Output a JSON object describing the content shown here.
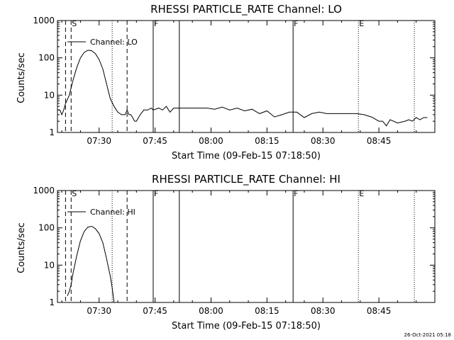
{
  "chart_data": [
    {
      "type": "line",
      "title": "RHESSI PARTICLE_RATE Channel: LO",
      "xlabel": "Start Time (09-Feb-15 07:18:50)",
      "ylabel": "Counts/sec",
      "yscale": "log",
      "ylim": [
        1,
        1000
      ],
      "xlim": [
        "07:18:50",
        "09:00:00"
      ],
      "x_ticks": [
        "07:30",
        "07:45",
        "08:00",
        "08:15",
        "08:30",
        "08:45"
      ],
      "y_ticks": [
        "1",
        "10",
        "100",
        "1000"
      ],
      "legend": {
        "label": "Channel: LO",
        "placement": "top-left"
      },
      "markers": [
        {
          "time": "07:21:00",
          "style": "dashed",
          "label": ""
        },
        {
          "time": "07:22:30",
          "style": "dashed",
          "label": "S"
        },
        {
          "time": "07:33:30",
          "style": "dotted",
          "label": ""
        },
        {
          "time": "07:37:30",
          "style": "dashed",
          "label": ""
        },
        {
          "time": "07:44:30",
          "style": "solid",
          "label": "F"
        },
        {
          "time": "07:51:30",
          "style": "solid",
          "label": ""
        },
        {
          "time": "08:22:00",
          "style": "solid",
          "label": "F"
        },
        {
          "time": "08:39:30",
          "style": "dotted",
          "label": "E"
        },
        {
          "time": "08:54:30",
          "style": "dotted",
          "label": ""
        }
      ],
      "series": [
        {
          "name": "Channel: LO",
          "x": [
            "07:18:50",
            "07:19:30",
            "07:20:00",
            "07:20:30",
            "07:21:00",
            "07:22:00",
            "07:23:00",
            "07:24:00",
            "07:25:00",
            "07:26:00",
            "07:27:00",
            "07:28:00",
            "07:29:00",
            "07:30:00",
            "07:31:00",
            "07:32:00",
            "07:33:00",
            "07:34:00",
            "07:35:00",
            "07:36:00",
            "07:37:00",
            "07:37:30",
            "07:38:00",
            "07:38:30",
            "07:39:00",
            "07:39:30",
            "07:40:00",
            "07:41:00",
            "07:42:00",
            "07:43:00",
            "07:44:00",
            "07:44:30",
            "07:46:00",
            "07:47:00",
            "07:48:00",
            "07:49:00",
            "07:50:00",
            "07:51:00",
            "07:53:00",
            "07:55:00",
            "07:57:00",
            "07:59:00",
            "08:01:00",
            "08:03:00",
            "08:05:00",
            "08:07:00",
            "08:09:00",
            "08:11:00",
            "08:13:00",
            "08:15:00",
            "08:17:00",
            "08:19:00",
            "08:21:00",
            "08:23:00",
            "08:25:00",
            "08:27:00",
            "08:29:00",
            "08:31:00",
            "08:33:00",
            "08:35:00",
            "08:37:00",
            "08:39:00",
            "08:41:00",
            "08:43:00",
            "08:45:00",
            "08:46:00",
            "08:47:00",
            "08:48:00",
            "08:50:00",
            "08:52:00",
            "08:53:00",
            "08:54:00",
            "08:55:00",
            "08:56:00",
            "08:57:00",
            "08:58:00"
          ],
          "values": [
            4,
            4,
            3,
            4,
            6,
            10,
            25,
            55,
            100,
            140,
            160,
            155,
            130,
            90,
            50,
            20,
            8,
            5,
            3.5,
            3,
            3,
            4,
            3,
            3,
            2.5,
            2,
            2,
            3,
            4,
            4,
            4.5,
            4,
            4.5,
            4,
            5,
            3.5,
            4.5,
            4.5,
            4.5,
            4.5,
            4.5,
            4.5,
            4.2,
            4.8,
            4,
            4.5,
            3.8,
            4.2,
            3.2,
            3.8,
            2.6,
            3,
            3.5,
            3.5,
            2.5,
            3.2,
            3.5,
            3.2,
            3.2,
            3.2,
            3.2,
            3.2,
            3,
            2.6,
            2,
            2,
            1.5,
            2.2,
            1.8,
            2,
            2.2,
            2,
            2.5,
            2.2,
            2.5,
            2.5
          ]
        }
      ]
    },
    {
      "type": "line",
      "title": "RHESSI PARTICLE_RATE Channel: HI",
      "xlabel": "Start Time (09-Feb-15 07:18:50)",
      "ylabel": "Counts/sec",
      "yscale": "log",
      "ylim": [
        1,
        1000
      ],
      "xlim": [
        "07:18:50",
        "09:00:00"
      ],
      "x_ticks": [
        "07:30",
        "07:45",
        "08:00",
        "08:15",
        "08:30",
        "08:45"
      ],
      "y_ticks": [
        "1",
        "10",
        "100",
        "1000"
      ],
      "legend": {
        "label": "Channel: HI",
        "placement": "top-left"
      },
      "markers": [
        {
          "time": "07:21:00",
          "style": "dashed",
          "label": ""
        },
        {
          "time": "07:22:30",
          "style": "dashed",
          "label": "S"
        },
        {
          "time": "07:33:30",
          "style": "dotted",
          "label": ""
        },
        {
          "time": "07:37:30",
          "style": "dashed",
          "label": ""
        },
        {
          "time": "07:44:30",
          "style": "solid",
          "label": "F"
        },
        {
          "time": "07:51:30",
          "style": "solid",
          "label": ""
        },
        {
          "time": "08:22:00",
          "style": "solid",
          "label": "F"
        },
        {
          "time": "08:39:30",
          "style": "dotted",
          "label": "E"
        },
        {
          "time": "08:54:30",
          "style": "dotted",
          "label": ""
        }
      ],
      "series": [
        {
          "name": "Channel: HI",
          "x": [
            "07:21:30",
            "07:22:00",
            "07:22:30",
            "07:23:00",
            "07:24:00",
            "07:25:00",
            "07:26:00",
            "07:27:00",
            "07:28:00",
            "07:29:00",
            "07:30:00",
            "07:31:00",
            "07:32:00",
            "07:33:00",
            "07:33:30",
            "07:34:00"
          ],
          "values": [
            1.5,
            2,
            3,
            6,
            18,
            45,
            80,
            105,
            110,
            95,
            70,
            40,
            15,
            5,
            2.5,
            1
          ]
        }
      ]
    }
  ],
  "timestamp": "26-Oct-2021 05:18"
}
